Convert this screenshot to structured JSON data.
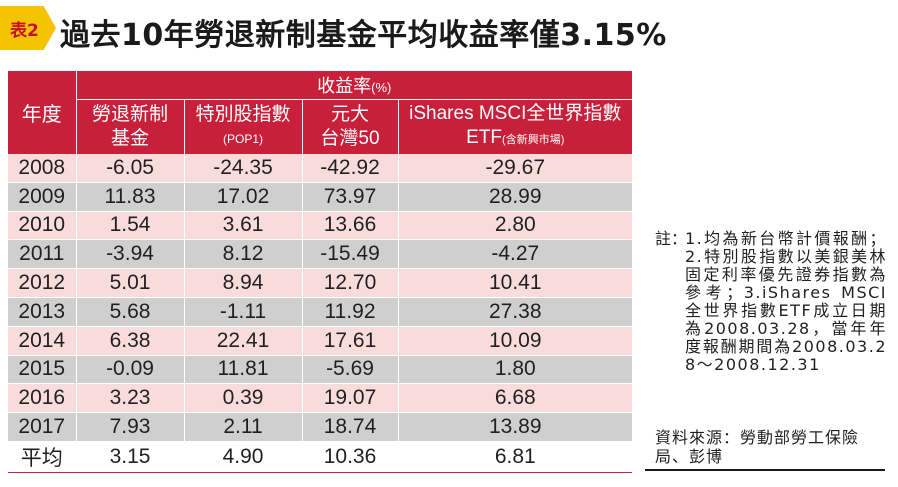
{
  "title": {
    "badge": "表2",
    "text": "過去10年勞退新制基金平均收益率僅3.15%"
  },
  "table": {
    "header_group": "收益率",
    "header_unit": "(%)",
    "year_header": "年度",
    "columns": [
      {
        "line1": "勞退新制",
        "line2": "基金"
      },
      {
        "line1": "特別股指數",
        "line2": "(POP1)"
      },
      {
        "line1": "元大",
        "line2": "台灣50"
      },
      {
        "line1": "iShares MSCI全世界指數",
        "line2": "ETF",
        "line2_sub": "(含新興市場)"
      }
    ],
    "rows": [
      {
        "year": "2008",
        "values": [
          "-6.05",
          "-24.35",
          "-42.92",
          "-29.67"
        ]
      },
      {
        "year": "2009",
        "values": [
          "11.83",
          "17.02",
          "73.97",
          "28.99"
        ]
      },
      {
        "year": "2010",
        "values": [
          "1.54",
          "3.61",
          "13.66",
          "2.80"
        ]
      },
      {
        "year": "2011",
        "values": [
          "-3.94",
          "8.12",
          "-15.49",
          "-4.27"
        ]
      },
      {
        "year": "2012",
        "values": [
          "5.01",
          "8.94",
          "12.70",
          "10.41"
        ]
      },
      {
        "year": "2013",
        "values": [
          "5.68",
          "-1.11",
          "11.92",
          "27.38"
        ]
      },
      {
        "year": "2014",
        "values": [
          "6.38",
          "22.41",
          "17.61",
          "10.09"
        ]
      },
      {
        "year": "2015",
        "values": [
          "-0.09",
          "11.81",
          "-5.69",
          "1.80"
        ]
      },
      {
        "year": "2016",
        "values": [
          "3.23",
          "0.39",
          "19.07",
          "6.68"
        ]
      },
      {
        "year": "2017",
        "values": [
          "7.93",
          "2.11",
          "18.74",
          "13.89"
        ]
      }
    ],
    "average": {
      "year": "平均",
      "values": [
        "3.15",
        "4.90",
        "10.36",
        "6.81"
      ]
    }
  },
  "note": {
    "label": "註：",
    "text": "1.均為新台幣計價報酬；2.特別股指數以美銀美林固定利率優先證券指數為參考；3.iShares MSCI全世界指數ETF成立日期為2008.03.28，當年年度報酬期間為2008.03.28～2008.12.31"
  },
  "source": "資料來源：勞動部勞工保險局、彭博",
  "colors": {
    "header": "#c8203a",
    "row_pink": "#f8dcdc",
    "row_gray": "#cfcfcf",
    "badge": "#f5c400"
  }
}
